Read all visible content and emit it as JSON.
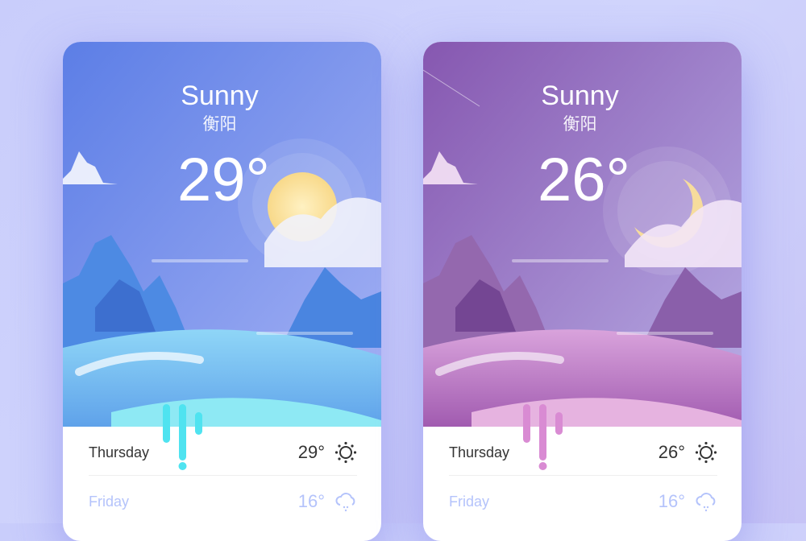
{
  "cards": [
    {
      "theme": "day",
      "condition": "Sunny",
      "city": "衡阳",
      "temperature": "29°",
      "accent": "#4fe3f0",
      "forecast": [
        {
          "day": "Thursday",
          "temp": "29°",
          "icon": "sun-icon"
        },
        {
          "day": "Friday",
          "temp": "16°",
          "icon": "snow-cloud-icon"
        }
      ]
    },
    {
      "theme": "night",
      "condition": "Sunny",
      "city": "衡阳",
      "temperature": "26°",
      "accent": "#d98bd3",
      "forecast": [
        {
          "day": "Thursday",
          "temp": "26°",
          "icon": "sun-icon"
        },
        {
          "day": "Friday",
          "temp": "16°",
          "icon": "snow-cloud-icon"
        }
      ]
    }
  ]
}
